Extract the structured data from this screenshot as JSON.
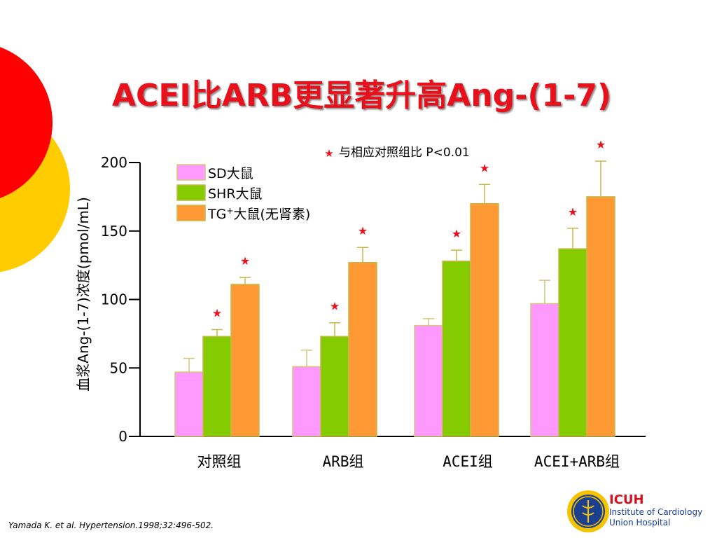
{
  "slide_title": "ACEI比ARB更显著升高Ang-(1-7)",
  "citation": "Yamada K. et al. Hypertension.1998;32:496-502.",
  "logo": {
    "name": "ICUH",
    "line1": "Institute of Cardiology",
    "line2": "Union Hospital"
  },
  "colors": {
    "title": "#e8101a",
    "sd": "#ff99ff",
    "shr": "#84cc00",
    "tg": "#ff9933",
    "star": "#e8101a",
    "deco_red": "#ff0000",
    "deco_yellow": "#ffcc00"
  },
  "chart_data": {
    "type": "bar",
    "title": "",
    "xlabel": "",
    "ylabel": "血浆Ang-(1-7)浓度(pmol/mL)",
    "ylim": [
      0,
      200
    ],
    "yticks": [
      "0",
      "50",
      "100",
      "150",
      "200"
    ],
    "categories": [
      "对照组",
      "ARB组",
      "ACEI组",
      "ACEI+ARB组"
    ],
    "series": [
      {
        "name": "SD大鼠",
        "values": [
          47,
          51,
          81,
          97
        ],
        "errors": [
          10,
          12,
          5,
          17
        ],
        "significant": [
          false,
          false,
          false,
          false
        ]
      },
      {
        "name": "SHR大鼠",
        "values": [
          73,
          73,
          128,
          137
        ],
        "errors": [
          5,
          10,
          8,
          15
        ],
        "significant": [
          true,
          true,
          true,
          true
        ]
      },
      {
        "name_prefix": "TG",
        "name_sup": "+",
        "name_suffix": "大鼠(无肾素)",
        "values": [
          111,
          127,
          170,
          175
        ],
        "errors": [
          5,
          11,
          14,
          26
        ],
        "significant": [
          true,
          true,
          true,
          true
        ]
      }
    ],
    "annotation": "与相应对照组比 P<0.01",
    "legend_position": "top-left"
  }
}
